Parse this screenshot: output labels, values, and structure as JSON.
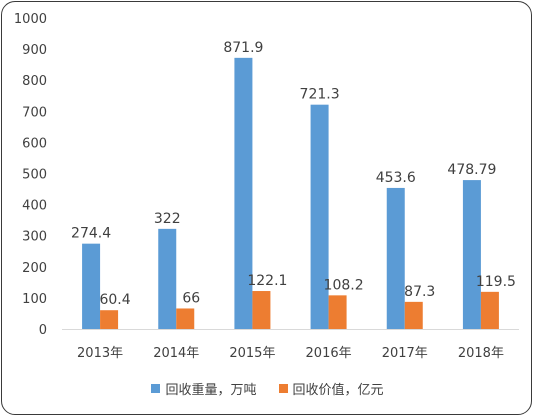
{
  "colors": {
    "series_0": "#5b9bd5",
    "series_1": "#ed7d31",
    "axis": "#d9d9d9",
    "text": "#404040"
  },
  "chart_data": {
    "type": "bar",
    "categories": [
      "2013年",
      "2014年",
      "2015年",
      "2016年",
      "2017年",
      "2018年"
    ],
    "series": [
      {
        "name": "回收重量，万吨",
        "values": [
          274.4,
          322,
          871.9,
          721.3,
          453.6,
          478.79
        ],
        "labels": [
          "274.4",
          "322",
          "871.9",
          "721.3",
          "453.6",
          "478.79"
        ]
      },
      {
        "name": "回收价值，亿元",
        "values": [
          60.4,
          66,
          122.1,
          108.2,
          87.3,
          119.5
        ],
        "labels": [
          "60.4",
          "66",
          "122.1",
          "108.2",
          "87.3",
          "119.5"
        ]
      }
    ],
    "ylim": [
      0,
      1000
    ],
    "yticks": [
      "0",
      "100",
      "200",
      "300",
      "400",
      "500",
      "600",
      "700",
      "800",
      "900",
      "1000"
    ],
    "grid": false,
    "legend_position": "bottom"
  }
}
